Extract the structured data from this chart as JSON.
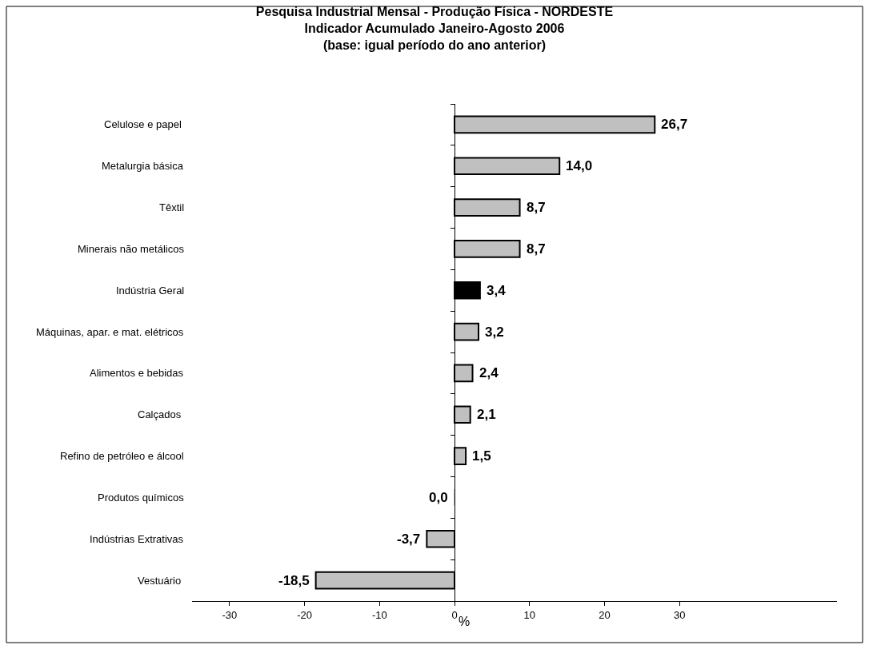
{
  "chart_data": {
    "type": "bar",
    "orientation": "horizontal",
    "title": "Pesquisa Industrial Mensal - Produção Física - NORDESTE",
    "subtitle": "Indicador Acumulado Janeiro-Agosto 2006\n(base: igual período do ano anterior)",
    "xlabel": "%",
    "categories": [
      "Celulose e papel ",
      "Metalurgia básica",
      "Têxtil",
      "Minerais não metálicos",
      "Indústria Geral",
      "Máquinas, apar. e mat. elétricos",
      "Alimentos e bebidas",
      "Calçados ",
      "Refino de petróleo e álcool",
      "Produtos químicos",
      "Indústrias Extrativas",
      "Vestuário "
    ],
    "values": [
      26.7,
      14.0,
      8.7,
      8.7,
      3.4,
      3.2,
      2.4,
      2.1,
      1.5,
      0.0,
      -3.7,
      -18.5
    ],
    "value_labels": [
      "26,7",
      "14,0",
      "8,7",
      "8,7",
      "3,4",
      "3,2",
      "2,4",
      "2,1",
      "1,5",
      "0,0",
      "-3,7",
      "-18,5"
    ],
    "colors": [
      "#c0c0c0",
      "#c0c0c0",
      "#c0c0c0",
      "#c0c0c0",
      "#000000",
      "#c0c0c0",
      "#c0c0c0",
      "#c0c0c0",
      "#c0c0c0",
      "#c0c0c0",
      "#c0c0c0",
      "#c0c0c0"
    ],
    "xlim": [
      -35,
      51
    ],
    "xticks": [
      -30,
      -20,
      -10,
      0,
      10,
      20,
      30
    ],
    "legend": false
  }
}
